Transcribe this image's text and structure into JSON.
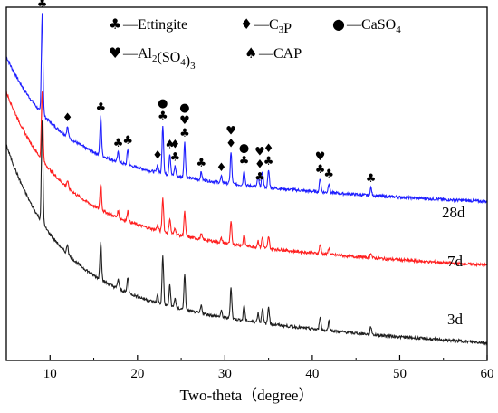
{
  "chart_data": {
    "type": "line",
    "title": "",
    "xlabel": "Two-theta（degree）",
    "ylabel": "",
    "xlim": [
      5,
      60
    ],
    "x_ticks": [
      "10",
      "20",
      "30",
      "40",
      "50",
      "60"
    ],
    "grid": false,
    "legend": {
      "placement": "top",
      "entries": [
        {
          "key": "ettingite",
          "symbol": "♣",
          "dash": "—",
          "label": "Ettingite"
        },
        {
          "key": "c3p",
          "symbol": "♦",
          "dash": "—",
          "label": "C",
          "sub": "3",
          "label_after": "P"
        },
        {
          "key": "caso4",
          "symbol": "●",
          "dash": "—",
          "label": "CaSO",
          "sub": "4",
          "label_after": ""
        },
        {
          "key": "al2so43",
          "symbol": "♥",
          "dash": "—",
          "label": "Al",
          "sub": "2",
          "label_after": "(SO",
          "sub2": "4",
          "label_after2": ")",
          "sub3": "3"
        },
        {
          "key": "cap",
          "symbol": "♠",
          "dash": "—",
          "label": "CAP"
        }
      ]
    },
    "series": [
      {
        "name": "28d",
        "color": "#1f1fff",
        "baseline": [
          [
            5,
            0.0
          ],
          [
            8,
            0.4
          ],
          [
            10,
            0.62
          ],
          [
            15,
            0.8
          ],
          [
            20,
            0.88
          ],
          [
            25,
            0.93
          ],
          [
            30,
            0.96
          ],
          [
            40,
            0.985
          ],
          [
            50,
            1.0
          ],
          [
            60,
            1.0
          ]
        ],
        "start_level": 0.86,
        "end_level": 0.45
      },
      {
        "name": "7d",
        "color": "#ff2020",
        "start_level": 0.76,
        "end_level": 0.27
      },
      {
        "name": "3d",
        "color": "#202020",
        "start_level": 0.61,
        "end_level": 0.05
      }
    ],
    "peaks": [
      {
        "x": 9.1,
        "h": 0.52
      },
      {
        "x": 12.0,
        "h": 0.05
      },
      {
        "x": 15.8,
        "h": 0.2
      },
      {
        "x": 17.8,
        "h": 0.05
      },
      {
        "x": 18.9,
        "h": 0.08
      },
      {
        "x": 22.3,
        "h": 0.04
      },
      {
        "x": 22.9,
        "h": 0.25
      },
      {
        "x": 23.7,
        "h": 0.11
      },
      {
        "x": 24.3,
        "h": 0.05
      },
      {
        "x": 25.4,
        "h": 0.18
      },
      {
        "x": 27.3,
        "h": 0.04
      },
      {
        "x": 29.6,
        "h": 0.03
      },
      {
        "x": 30.7,
        "h": 0.16
      },
      {
        "x": 32.2,
        "h": 0.08
      },
      {
        "x": 33.8,
        "h": 0.05
      },
      {
        "x": 34.3,
        "h": 0.08
      },
      {
        "x": 35.0,
        "h": 0.09
      },
      {
        "x": 40.9,
        "h": 0.07
      },
      {
        "x": 41.9,
        "h": 0.05
      },
      {
        "x": 46.7,
        "h": 0.04
      }
    ],
    "peak_markers": [
      {
        "x": 9.1,
        "symbols": [
          "♣"
        ]
      },
      {
        "x": 12.0,
        "symbols": [
          "♦"
        ]
      },
      {
        "x": 15.8,
        "symbols": [
          "♣"
        ]
      },
      {
        "x": 17.8,
        "symbols": [
          "♣"
        ]
      },
      {
        "x": 18.9,
        "symbols": [
          "♣"
        ]
      },
      {
        "x": 22.3,
        "symbols": [
          "♦"
        ]
      },
      {
        "x": 22.9,
        "symbols": [
          "●",
          "♣"
        ]
      },
      {
        "x": 23.7,
        "symbols": [
          "♠"
        ]
      },
      {
        "x": 24.3,
        "symbols": [
          "♦",
          "♣"
        ]
      },
      {
        "x": 25.4,
        "symbols": [
          "●",
          "♥",
          "♣"
        ]
      },
      {
        "x": 27.3,
        "symbols": [
          "♣"
        ]
      },
      {
        "x": 29.6,
        "symbols": [
          "♦"
        ]
      },
      {
        "x": 30.7,
        "symbols": [
          "♥",
          "♦"
        ]
      },
      {
        "x": 32.2,
        "symbols": [
          "●",
          "♣"
        ]
      },
      {
        "x": 34.0,
        "symbols": [
          "♥",
          "♦",
          "♣"
        ]
      },
      {
        "x": 35.0,
        "symbols": [
          "♦",
          "♣"
        ]
      },
      {
        "x": 40.9,
        "symbols": [
          "♥",
          "♣"
        ]
      },
      {
        "x": 41.9,
        "symbols": [
          "♣"
        ]
      },
      {
        "x": 46.7,
        "symbols": [
          "♣"
        ]
      }
    ]
  }
}
